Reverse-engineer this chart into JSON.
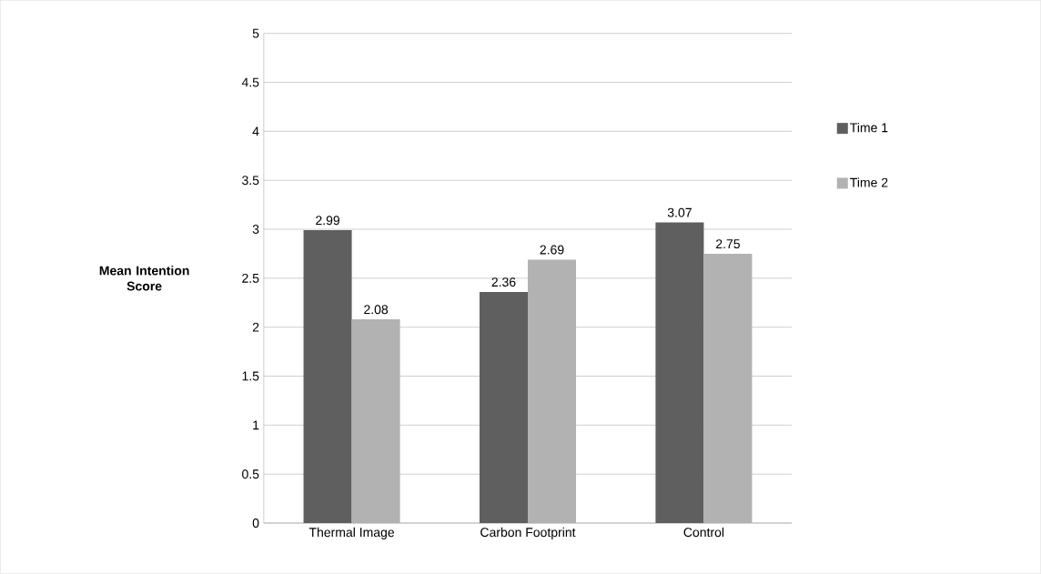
{
  "chart_data": {
    "type": "bar",
    "ylabel": "Mean Intention Score",
    "categories": [
      "Thermal Image",
      "Carbon Footprint",
      "Control"
    ],
    "series": [
      {
        "name": "Time 1",
        "color": "#5f5f5f",
        "values": [
          2.99,
          2.36,
          3.07
        ]
      },
      {
        "name": "Time 2",
        "color": "#b2b2b2",
        "values": [
          2.08,
          2.69,
          2.75
        ]
      }
    ],
    "ylim": [
      0,
      5
    ],
    "yticks": [
      0,
      0.5,
      1,
      1.5,
      2,
      2.5,
      3,
      3.5,
      4,
      4.5,
      5
    ],
    "grid": "y",
    "legend": "right",
    "data_labels": true
  }
}
